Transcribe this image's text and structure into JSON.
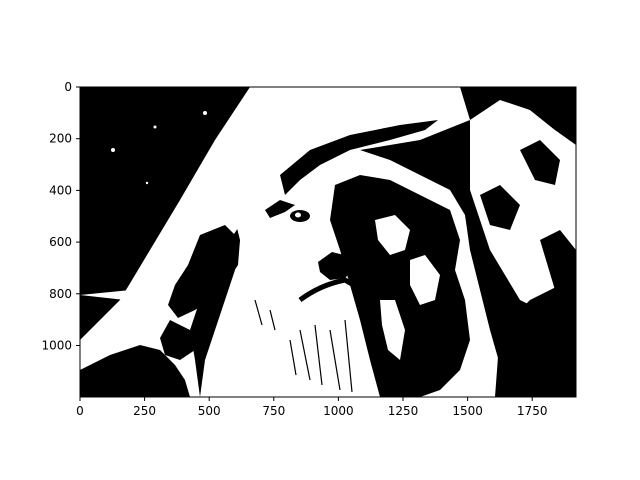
{
  "figure": {
    "image_description_kind": "binary thresholded photo of a lion head",
    "colors": {
      "foreground": "#000000",
      "background": "#ffffff",
      "axes": "#000000"
    }
  },
  "axes": {
    "x_ticks": [
      "0",
      "250",
      "500",
      "750",
      "1000",
      "1250",
      "1500",
      "1750"
    ],
    "y_ticks": [
      "0",
      "200",
      "400",
      "600",
      "800",
      "1000"
    ]
  }
}
